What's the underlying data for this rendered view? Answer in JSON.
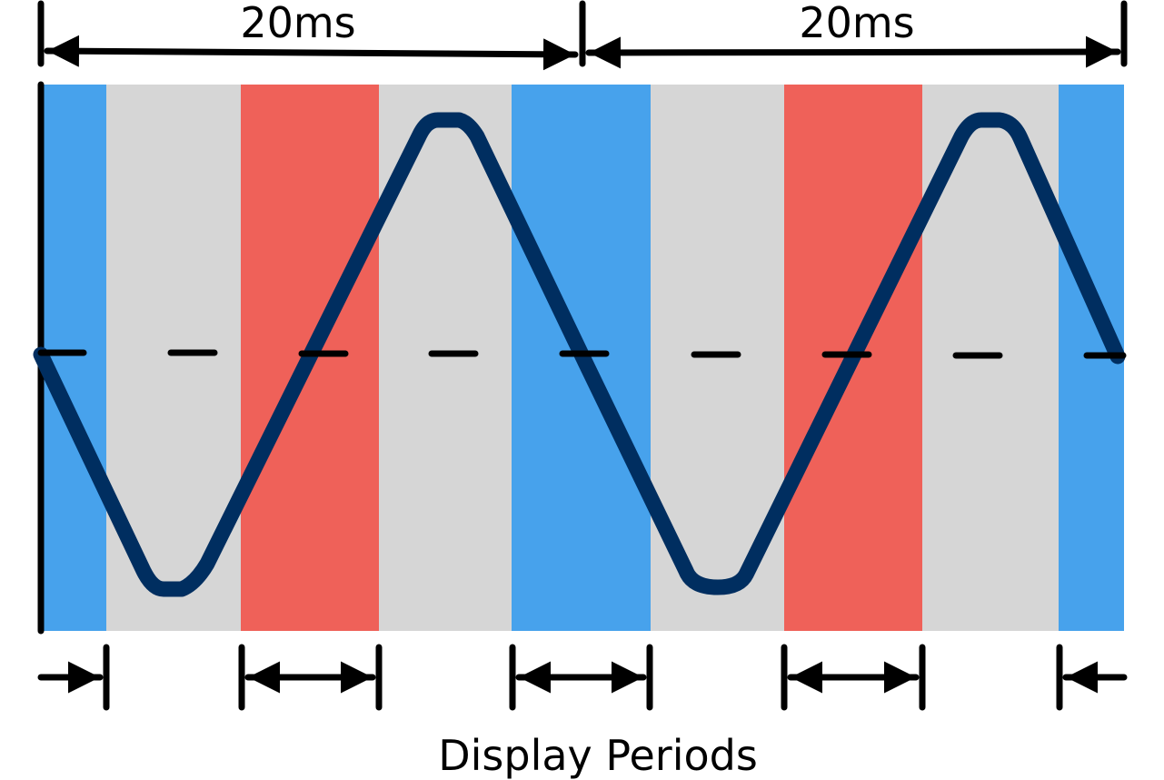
{
  "top_labels": [
    "20ms",
    "20ms"
  ],
  "bottom_label": "Display Periods"
}
